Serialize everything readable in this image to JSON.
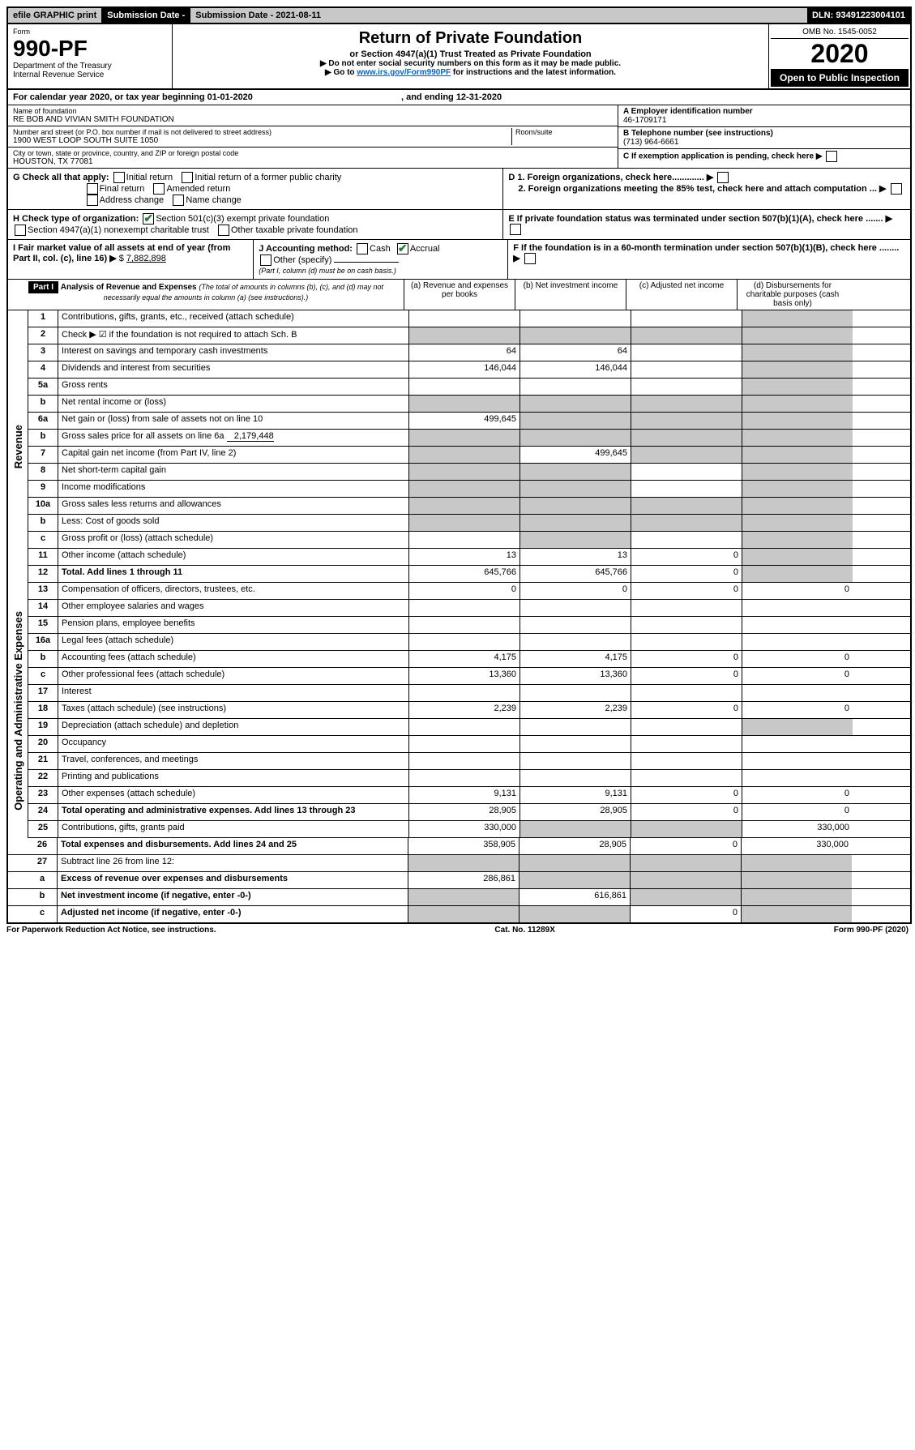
{
  "topbar": {
    "efile": "efile GRAPHIC print",
    "subdate_label": "Submission Date - 2021-08-11",
    "dln": "DLN: 93491223004101"
  },
  "header": {
    "form_prefix": "Form",
    "form_no": "990-PF",
    "dept": "Department of the Treasury\nInternal Revenue Service",
    "title": "Return of Private Foundation",
    "subtitle": "or Section 4947(a)(1) Trust Treated as Private Foundation",
    "note1": "▶ Do not enter social security numbers on this form as it may be made public.",
    "note2": "▶ Go to ",
    "link": "www.irs.gov/Form990PF",
    "note3": " for instructions and the latest information.",
    "omb": "OMB No. 1545-0052",
    "year": "2020",
    "inspect": "Open to Public Inspection"
  },
  "calrow": "For calendar year 2020, or tax year beginning 01-01-2020",
  "calend": ", and ending 12-31-2020",
  "id": {
    "name_label": "Name of foundation",
    "name": "RE BOB AND VIVIAN SMITH FOUNDATION",
    "addr_label": "Number and street (or P.O. box number if mail is not delivered to street address)",
    "addr": "1900 WEST LOOP SOUTH SUITE 1050",
    "room_label": "Room/suite",
    "city_label": "City or town, state or province, country, and ZIP or foreign postal code",
    "city": "HOUSTON, TX  77081",
    "ein_label": "A Employer identification number",
    "ein": "46-1709171",
    "phone_label": "B Telephone number (see instructions)",
    "phone": "(713) 964-6661",
    "c_label": "C If exemption application is pending, check here",
    "d1": "D 1. Foreign organizations, check here.............",
    "d2": "2. Foreign organizations meeting the 85% test, check here and attach computation ...",
    "e": "E If private foundation status was terminated under section 507(b)(1)(A), check here .......",
    "f": "F If the foundation is in a 60-month termination under section 507(b)(1)(B), check here ........"
  },
  "g": {
    "label": "G Check all that apply:",
    "opts": [
      "Initial return",
      "Initial return of a former public charity",
      "Final return",
      "Amended return",
      "Address change",
      "Name change"
    ]
  },
  "h": {
    "label": "H Check type of organization:",
    "o1": "Section 501(c)(3) exempt private foundation",
    "o2": "Section 4947(a)(1) nonexempt charitable trust",
    "o3": "Other taxable private foundation"
  },
  "i": {
    "label": "I Fair market value of all assets at end of year (from Part II, col. (c), line 16)",
    "val": "7,882,898"
  },
  "j": {
    "label": "J Accounting method:",
    "cash": "Cash",
    "accrual": "Accrual",
    "other": "Other (specify)",
    "note": "(Part I, column (d) must be on cash basis.)"
  },
  "part1": {
    "hdr": "Part I",
    "title": "Analysis of Revenue and Expenses",
    "title_note": "(The total of amounts in columns (b), (c), and (d) may not necessarily equal the amounts in column (a) (see instructions).)",
    "cols": {
      "a": "(a) Revenue and expenses per books",
      "b": "(b) Net investment income",
      "c": "(c) Adjusted net income",
      "d": "(d) Disbursements for charitable purposes (cash basis only)"
    }
  },
  "side": {
    "rev": "Revenue",
    "exp": "Operating and Administrative Expenses"
  },
  "rows": {
    "1": {
      "lbl": "Contributions, gifts, grants, etc., received (attach schedule)"
    },
    "2": {
      "lbl": "Check ▶ ☑ if the foundation is not required to attach Sch. B"
    },
    "3": {
      "lbl": "Interest on savings and temporary cash investments",
      "a": "64",
      "b": "64"
    },
    "4": {
      "lbl": "Dividends and interest from securities",
      "a": "146,044",
      "b": "146,044"
    },
    "5a": {
      "lbl": "Gross rents"
    },
    "5b": {
      "lbl": "Net rental income or (loss)"
    },
    "6a": {
      "lbl": "Net gain or (loss) from sale of assets not on line 10",
      "a": "499,645"
    },
    "6b": {
      "lbl": "Gross sales price for all assets on line 6a",
      "inline": "2,179,448"
    },
    "7": {
      "lbl": "Capital gain net income (from Part IV, line 2)",
      "b": "499,645"
    },
    "8": {
      "lbl": "Net short-term capital gain"
    },
    "9": {
      "lbl": "Income modifications"
    },
    "10a": {
      "lbl": "Gross sales less returns and allowances"
    },
    "10b": {
      "lbl": "Less: Cost of goods sold"
    },
    "10c": {
      "lbl": "Gross profit or (loss) (attach schedule)"
    },
    "11": {
      "lbl": "Other income (attach schedule)",
      "a": "13",
      "b": "13",
      "c": "0"
    },
    "12": {
      "lbl": "Total. Add lines 1 through 11",
      "a": "645,766",
      "b": "645,766",
      "c": "0"
    },
    "13": {
      "lbl": "Compensation of officers, directors, trustees, etc.",
      "a": "0",
      "b": "0",
      "c": "0",
      "d": "0"
    },
    "14": {
      "lbl": "Other employee salaries and wages"
    },
    "15": {
      "lbl": "Pension plans, employee benefits"
    },
    "16a": {
      "lbl": "Legal fees (attach schedule)"
    },
    "16b": {
      "lbl": "Accounting fees (attach schedule)",
      "a": "4,175",
      "b": "4,175",
      "c": "0",
      "d": "0"
    },
    "16c": {
      "lbl": "Other professional fees (attach schedule)",
      "a": "13,360",
      "b": "13,360",
      "c": "0",
      "d": "0"
    },
    "17": {
      "lbl": "Interest"
    },
    "18": {
      "lbl": "Taxes (attach schedule) (see instructions)",
      "a": "2,239",
      "b": "2,239",
      "c": "0",
      "d": "0"
    },
    "19": {
      "lbl": "Depreciation (attach schedule) and depletion"
    },
    "20": {
      "lbl": "Occupancy"
    },
    "21": {
      "lbl": "Travel, conferences, and meetings"
    },
    "22": {
      "lbl": "Printing and publications"
    },
    "23": {
      "lbl": "Other expenses (attach schedule)",
      "a": "9,131",
      "b": "9,131",
      "c": "0",
      "d": "0"
    },
    "24": {
      "lbl": "Total operating and administrative expenses. Add lines 13 through 23",
      "a": "28,905",
      "b": "28,905",
      "c": "0",
      "d": "0"
    },
    "25": {
      "lbl": "Contributions, gifts, grants paid",
      "a": "330,000",
      "d": "330,000"
    },
    "26": {
      "lbl": "Total expenses and disbursements. Add lines 24 and 25",
      "a": "358,905",
      "b": "28,905",
      "c": "0",
      "d": "330,000"
    },
    "27": {
      "lbl": "Subtract line 26 from line 12:"
    },
    "27a": {
      "lbl": "Excess of revenue over expenses and disbursements",
      "a": "286,861"
    },
    "27b": {
      "lbl": "Net investment income (if negative, enter -0-)",
      "b": "616,861"
    },
    "27c": {
      "lbl": "Adjusted net income (if negative, enter -0-)",
      "c": "0"
    }
  },
  "footer": {
    "l": "For Paperwork Reduction Act Notice, see instructions.",
    "m": "Cat. No. 11289X",
    "r": "Form 990-PF (2020)"
  },
  "colors": {
    "grey": "#c8c8c8",
    "black": "#000000",
    "link": "#0066cc",
    "check": "#2a7a3a"
  }
}
